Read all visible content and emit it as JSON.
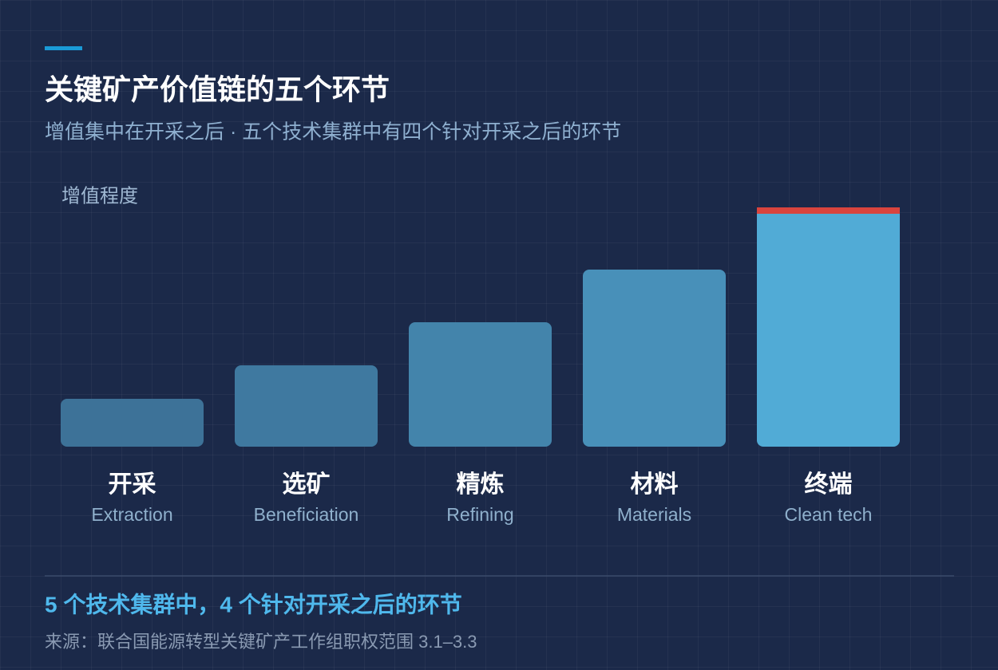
{
  "chart_data": {
    "type": "bar",
    "title": "关键矿产价值链的五个环节",
    "subtitle": "增值集中在开采之后 · 五个技术集群中有四个针对开采之后的环节",
    "y_label": "增值程度",
    "categories": [
      "开采",
      "选矿",
      "精炼",
      "材料",
      "终端"
    ],
    "subcategories": [
      "Extraction",
      "Beneficiation",
      "Refining",
      "Materials",
      "Clean tech"
    ],
    "values": [
      60,
      102,
      156,
      222,
      300
    ],
    "colors": [
      "#3d7298",
      "#3f79a0",
      "#4384ab",
      "#4890b9",
      "#51abd6"
    ],
    "highlight_color": "#d9443e",
    "ylim": [
      0,
      300
    ],
    "footnote": "5 个技术集群中，4 个针对开采之后的环节",
    "source": "来源：联合国能源转型关键矿产工作组职权范围 3.1–3.3"
  }
}
